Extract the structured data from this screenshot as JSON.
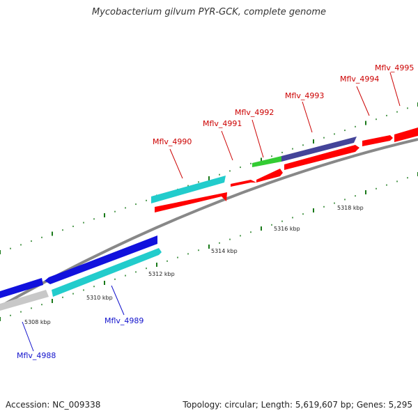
{
  "title": "Mycobacterium gilvum PYR-GCK, complete genome",
  "footer": {
    "accession": "Accession: NC_009338",
    "summary": "Topology: circular; Length: 5,619,607 bp; Genes: 5,295"
  },
  "colors": {
    "backbone": "#888888",
    "red": "#ff0000",
    "cyan": "#22cccc",
    "blue": "#1111dd",
    "navy": "#444499",
    "green": "#33cc33",
    "gray_gene": "#c8c8c8",
    "tick": "#1a7a1a",
    "label_red": "#cc0000",
    "label_blue": "#1111cc"
  },
  "scale_labels": [
    "5308 kbp",
    "5310 kbp",
    "5312 kbp",
    "5314 kbp",
    "5316 kbp",
    "5318 kbp"
  ],
  "gene_labels": [
    {
      "text": "Mflv_4988",
      "color": "blue"
    },
    {
      "text": "Mflv_4989",
      "color": "blue"
    },
    {
      "text": "Mflv_4990",
      "color": "red"
    },
    {
      "text": "Mflv_4991",
      "color": "red"
    },
    {
      "text": "Mflv_4992",
      "color": "red"
    },
    {
      "text": "Mflv_4993",
      "color": "red"
    },
    {
      "text": "Mflv_4994",
      "color": "red"
    },
    {
      "text": "Mflv_4995",
      "color": "red"
    }
  ]
}
